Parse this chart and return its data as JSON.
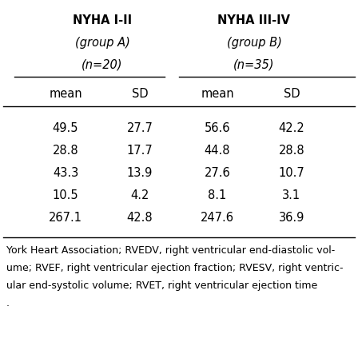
{
  "col_headers_line1": [
    "NYHA I-II",
    "NYHA III-IV"
  ],
  "col_headers_line2": [
    "(group A)",
    "(group B)"
  ],
  "col_headers_line3": [
    "( n =20)",
    "( n =35)"
  ],
  "col_headers_line3_plain": [
    "(n=20)",
    "(n=35)"
  ],
  "subheaders": [
    "mean",
    "SD",
    "mean",
    "SD"
  ],
  "rows": [
    [
      "49.5",
      "27.7",
      "56.6",
      "42.2"
    ],
    [
      "28.8",
      "17.7",
      "44.8",
      "28.8"
    ],
    [
      "43.3",
      "13.9",
      "27.6",
      "10.7"
    ],
    [
      "10.5",
      "4.2",
      "8.1",
      "3.1"
    ],
    [
      "267.1",
      "42.8",
      "247.6",
      "36.9"
    ]
  ],
  "footer_lines": [
    "York Heart Association; RVEDV, right ventricular end-diastolic vol-",
    "ume; RVEF, right ventricular ejection fraction; RVESV, right ventric-",
    "ular end-systolic volume; RVET, right ventricular ejection time",
    "."
  ],
  "bg_color": "#ffffff",
  "text_color": "#000000",
  "font_size_header": 10.5,
  "font_size_subheader": 10.5,
  "font_size_data": 10.5,
  "font_size_footer": 9.0
}
